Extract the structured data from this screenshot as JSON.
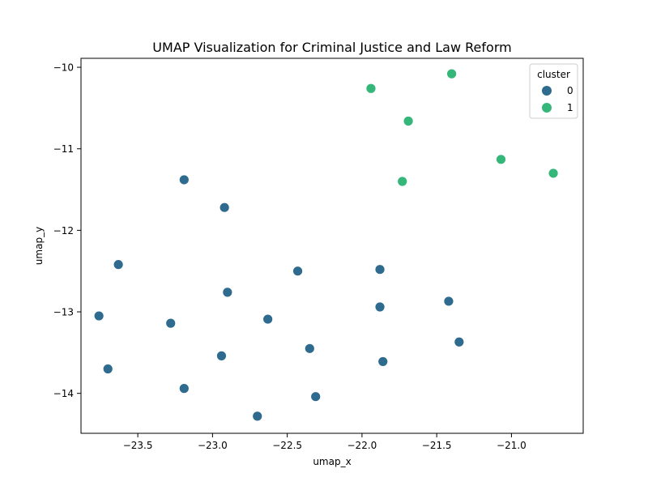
{
  "chart_data": {
    "type": "scatter",
    "title": "UMAP Visualization for Criminal Justice and Law Reform",
    "xlabel": "umap_x",
    "ylabel": "umap_y",
    "xlim": [
      -23.88,
      -20.52
    ],
    "ylim": [
      -14.49,
      -9.89
    ],
    "xticks": [
      -23.5,
      -23.0,
      -22.5,
      -22.0,
      -21.5,
      -21.0
    ],
    "xtick_labels": [
      "−23.5",
      "−23.0",
      "−22.5",
      "−22.0",
      "−21.5",
      "−21.0"
    ],
    "yticks": [
      -14,
      -13,
      -12,
      -11,
      -10
    ],
    "ytick_labels": [
      "−14",
      "−13",
      "−12",
      "−11",
      "−10"
    ],
    "grid": false,
    "legend": {
      "title": "cluster",
      "placement": "top-right",
      "entries": [
        {
          "label": "0",
          "color": "#2e6b8e"
        },
        {
          "label": "1",
          "color": "#35b779"
        }
      ]
    },
    "series": [
      {
        "name": "0",
        "color": "#2e6b8e",
        "points": [
          [
            -23.19,
            -11.38
          ],
          [
            -22.92,
            -11.72
          ],
          [
            -23.63,
            -12.42
          ],
          [
            -22.43,
            -12.5
          ],
          [
            -21.88,
            -12.48
          ],
          [
            -22.9,
            -12.76
          ],
          [
            -21.88,
            -12.94
          ],
          [
            -21.42,
            -12.87
          ],
          [
            -23.76,
            -13.05
          ],
          [
            -23.28,
            -13.14
          ],
          [
            -22.63,
            -13.09
          ],
          [
            -22.94,
            -13.54
          ],
          [
            -22.35,
            -13.45
          ],
          [
            -21.35,
            -13.37
          ],
          [
            -21.86,
            -13.61
          ],
          [
            -23.7,
            -13.7
          ],
          [
            -23.19,
            -13.94
          ],
          [
            -22.31,
            -14.04
          ],
          [
            -22.7,
            -14.28
          ]
        ]
      },
      {
        "name": "1",
        "color": "#35b779",
        "points": [
          [
            -21.4,
            -10.08
          ],
          [
            -21.94,
            -10.26
          ],
          [
            -21.69,
            -10.66
          ],
          [
            -21.07,
            -11.13
          ],
          [
            -20.72,
            -11.3
          ],
          [
            -21.73,
            -11.4
          ]
        ]
      }
    ]
  }
}
